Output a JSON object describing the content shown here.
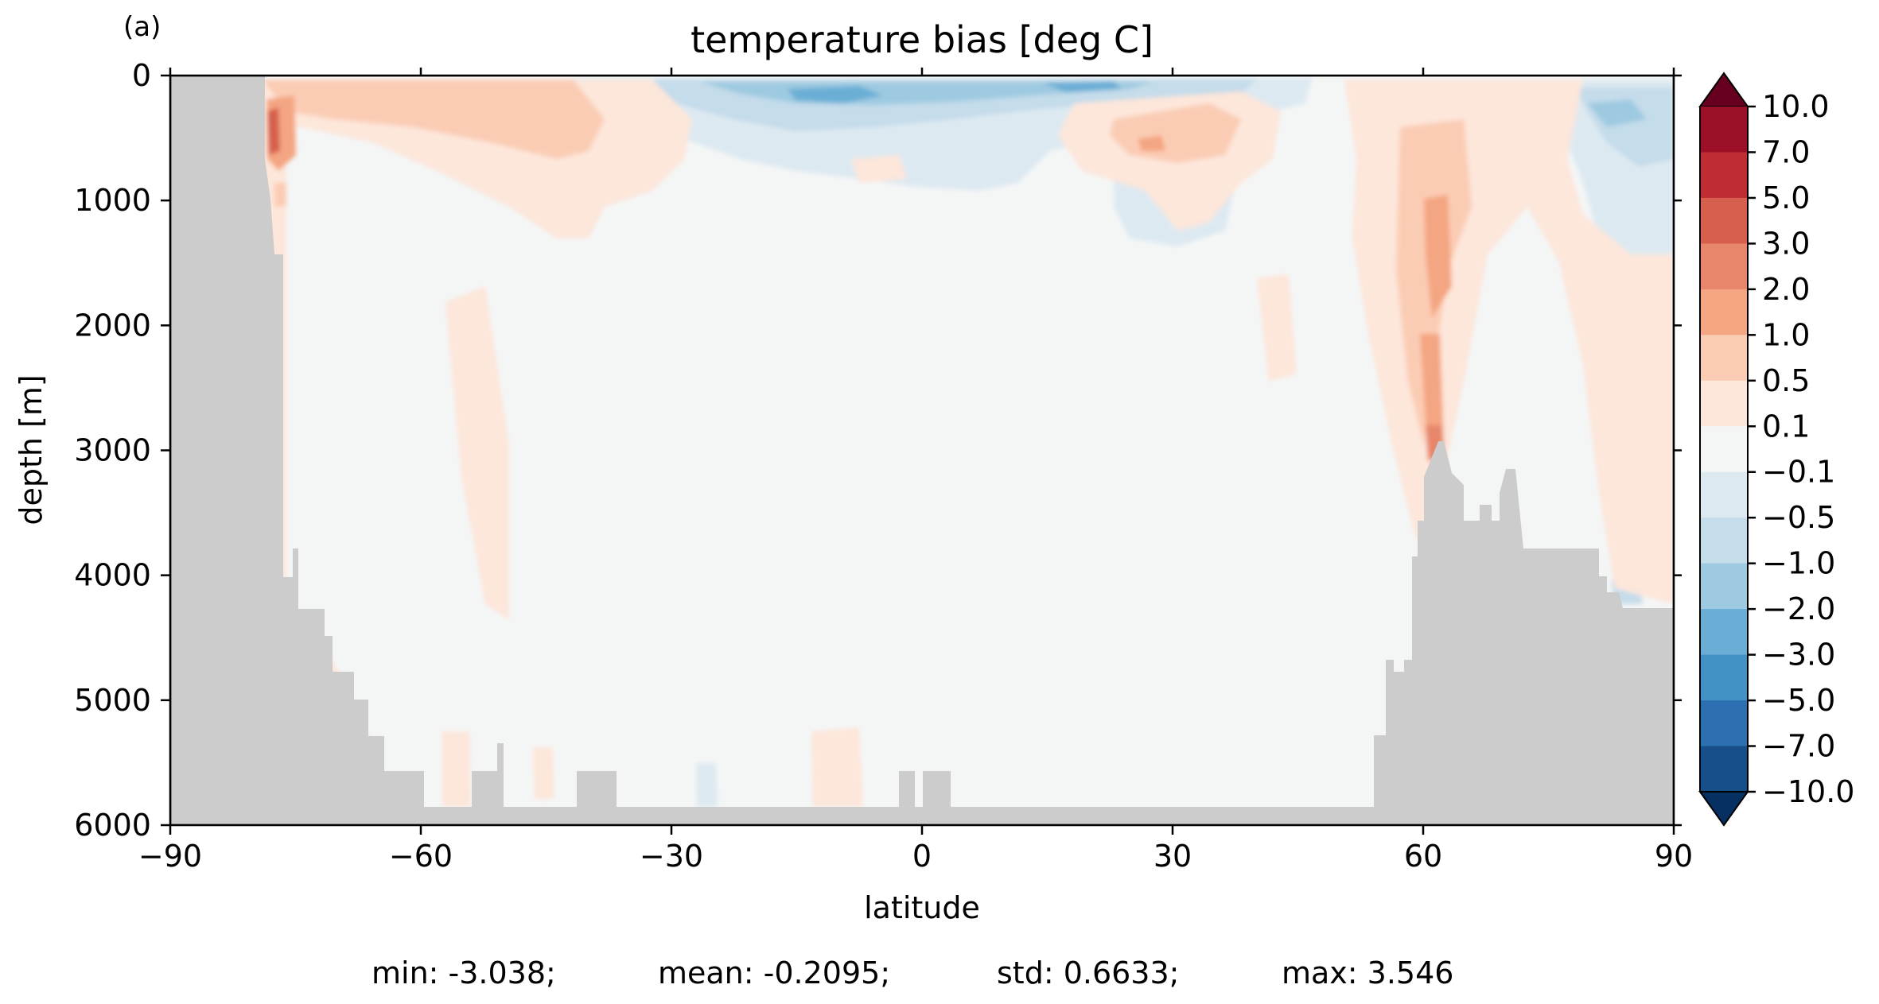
{
  "chart_data": {
    "type": "heatmap",
    "panel_label": "(a)",
    "title": "temperature bias [deg C]",
    "xlabel": "latitude",
    "ylabel": "depth [m]",
    "xlim": [
      -90,
      90
    ],
    "ylim": [
      6000,
      0
    ],
    "x_ticks": [
      -90,
      -60,
      -30,
      0,
      30,
      60,
      90
    ],
    "x_tick_labels": [
      "−90",
      "−60",
      "−30",
      "0",
      "30",
      "60",
      "90"
    ],
    "y_ticks": [
      0,
      1000,
      2000,
      3000,
      4000,
      5000,
      6000
    ],
    "y_tick_labels": [
      "0",
      "1000",
      "2000",
      "3000",
      "4000",
      "5000",
      "6000"
    ],
    "colorbar": {
      "colormap": "RdBu_r",
      "extend": "both",
      "levels": [
        10,
        7,
        5,
        3,
        2,
        1,
        0.5,
        0.1,
        -0.1,
        -0.5,
        -1,
        -2,
        -3,
        -5,
        -7,
        -10
      ],
      "level_labels": [
        "10.0",
        "7.0",
        "5.0",
        "3.0",
        "2.0",
        "1.0",
        "0.5",
        "0.1",
        "−0.1",
        "−0.5",
        "−1.0",
        "−2.0",
        "−3.0",
        "−5.0",
        "−7.0",
        "−10.0"
      ],
      "over_color": "#67001f",
      "under_color": "#053061",
      "band_colors": [
        "#9b0f27",
        "#c02c34",
        "#d6604d",
        "#e7866a",
        "#f4a582",
        "#fbccb4",
        "#fde6da",
        "#f4f6f6",
        "#dde9f1",
        "#c5dcea",
        "#9ecae1",
        "#6aaed6",
        "#4292c6",
        "#2c70b1",
        "#174f8a"
      ]
    },
    "land_color": "#cccccc",
    "stats": {
      "min": "min: -3.038;",
      "mean": "mean: -0.2095;",
      "std": "std: 0.6633;",
      "max": "max: 3.546"
    }
  }
}
